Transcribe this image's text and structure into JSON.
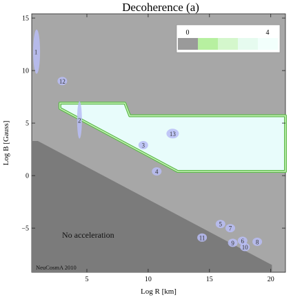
{
  "chart_data": {
    "type": "heatmap",
    "title": "Decoherence (a)",
    "xlabel": "Log R [km]",
    "ylabel": "Log B [Gauss]",
    "xlim": [
      0.5,
      21.2
    ],
    "ylim": [
      -9.2,
      15.4
    ],
    "x_ticks": [
      5,
      10,
      15,
      20
    ],
    "y_ticks": [
      -5,
      0,
      5,
      10,
      15
    ],
    "grid": false,
    "legend": {
      "placement": "top-right",
      "tick_labels": [
        "0",
        "4"
      ],
      "swatch_colors": [
        "#9a9a9a",
        "#b7f0a0",
        "#d4f7cc",
        "#e6fbef",
        "#f2fffc"
      ]
    },
    "regions": [
      {
        "label": "",
        "color": "#e8fcfb",
        "boundary": "#5cba4a",
        "polygon": [
          [
            2.8,
            6.9
          ],
          [
            8.1,
            6.9
          ],
          [
            8.5,
            5.7
          ],
          [
            21.2,
            5.7
          ],
          [
            21.2,
            0.4
          ],
          [
            12.4,
            0.4
          ],
          [
            2.8,
            6.4
          ]
        ]
      },
      {
        "label": "No acceleration",
        "color": "#7b7b7b",
        "polygon": [
          [
            0.5,
            3.3
          ],
          [
            1.0,
            3.3
          ],
          [
            20.1,
            -8.5
          ],
          [
            20.1,
            -9.2
          ],
          [
            0.5,
            -9.2
          ]
        ]
      }
    ],
    "sources": [
      {
        "label": "1",
        "x": 0.9,
        "y": 11.8
      },
      {
        "label": "2",
        "x": 4.4,
        "y": 5.3
      },
      {
        "label": "3",
        "x": 9.6,
        "y": 2.9
      },
      {
        "label": "4",
        "x": 10.7,
        "y": 0.4
      },
      {
        "label": "5",
        "x": 15.9,
        "y": -4.6
      },
      {
        "label": "6",
        "x": 17.7,
        "y": -6.2
      },
      {
        "label": "7",
        "x": 16.7,
        "y": -5.0
      },
      {
        "label": "8",
        "x": 18.9,
        "y": -6.3
      },
      {
        "label": "9",
        "x": 16.9,
        "y": -6.4
      },
      {
        "label": "10",
        "x": 17.9,
        "y": -6.8
      },
      {
        "label": "11",
        "x": 14.4,
        "y": -5.9
      },
      {
        "label": "12",
        "x": 3.0,
        "y": 9.0
      },
      {
        "label": "13",
        "x": 12.0,
        "y": 4.0
      }
    ],
    "annotations": [
      "No acceleration",
      "NeuCosmA 2010"
    ]
  }
}
